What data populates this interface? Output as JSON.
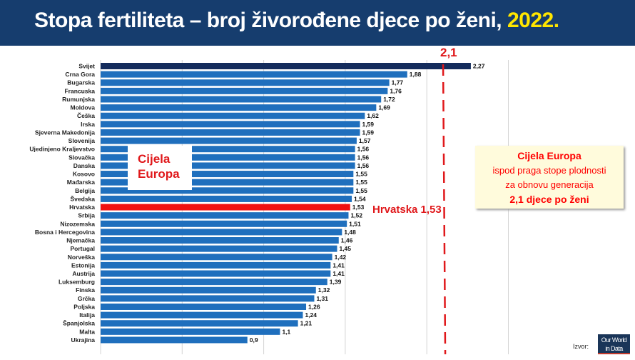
{
  "header": {
    "title_main": "Stopa fertiliteta – broj živorođene djece po ženi,",
    "title_year": "2022."
  },
  "chart_data": {
    "type": "bar",
    "orientation": "horizontal",
    "categories": [
      "Svijet",
      "Crna Gora",
      "Bugarska",
      "Francuska",
      "Rumunjska",
      "Moldova",
      "Češka",
      "Irska",
      "Sjeverna Makedonija",
      "Slovenija",
      "Ujedinjeno Kraljevstvo",
      "Slovačka",
      "Danska",
      "Kosovo",
      "Mađarska",
      "Belgija",
      "Švedska",
      "Hrvatska",
      "Srbija",
      "Nizozemska",
      "Bosna i Hercegovina",
      "Njemačka",
      "Portugal",
      "Norveška",
      "Estonija",
      "Austrija",
      "Luksemburg",
      "Finska",
      "Grčka",
      "Poljska",
      "Italija",
      "Španjolska",
      "Malta",
      "Ukrajina"
    ],
    "values": [
      2.27,
      1.88,
      1.77,
      1.76,
      1.72,
      1.69,
      1.62,
      1.59,
      1.59,
      1.57,
      1.56,
      1.56,
      1.56,
      1.55,
      1.55,
      1.55,
      1.54,
      1.53,
      1.52,
      1.51,
      1.48,
      1.46,
      1.45,
      1.42,
      1.41,
      1.41,
      1.39,
      1.32,
      1.31,
      1.26,
      1.24,
      1.21,
      1.1,
      0.9
    ],
    "value_labels": [
      "2,27",
      "1,88",
      "1,77",
      "1,76",
      "1,72",
      "1,69",
      "1,62",
      "1,59",
      "1,59",
      "1,57",
      "1,56",
      "1,56",
      "1,56",
      "1,55",
      "1,55",
      "1,55",
      "1,54",
      "1,53",
      "1,52",
      "1,51",
      "1,48",
      "1,46",
      "1,45",
      "1,42",
      "1,41",
      "1,41",
      "1,39",
      "1,32",
      "1,31",
      "1,26",
      "1,24",
      "1,21",
      "1,1",
      "0,9"
    ],
    "xlim": [
      0,
      2.5
    ],
    "grid": true,
    "colors": {
      "default": "#1f6fbd",
      "world": "#142c5c",
      "croatia": "#f01010",
      "threshold": "#e0181b"
    },
    "threshold": {
      "value": 2.1,
      "label": "2,1"
    }
  },
  "annotations": {
    "left_box": {
      "line1": "Cijela",
      "line2": "Europa"
    },
    "croatia_label": "Hrvatska 1,53",
    "right_box": {
      "line1": "Cijela Europa",
      "line2": "ispod praga stope plodnosti",
      "line3": "za obnovu generacija",
      "line4": "2,1 djece po ženi"
    }
  },
  "source": {
    "label": "Izvor:",
    "logo_line1": "Our World",
    "logo_line2": "in Data"
  }
}
